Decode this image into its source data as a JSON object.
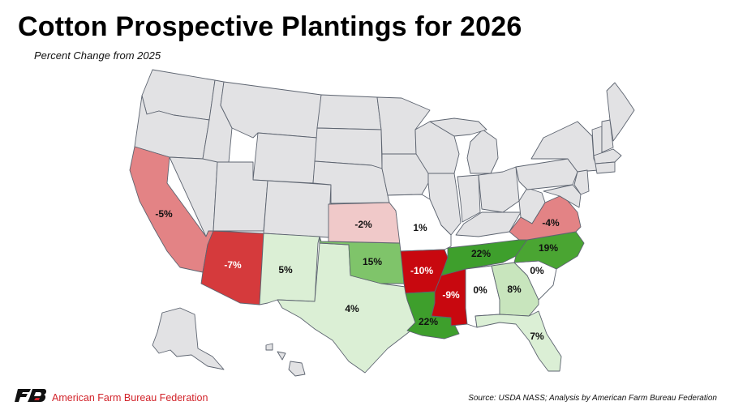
{
  "title": "Cotton Prospective Plantings for 2026",
  "subtitle": "Percent Change from 2025",
  "footer": {
    "organization": "American Farm Bureau Federation",
    "source": "Source: USDA NASS; Analysis by American Farm Bureau Federation"
  },
  "colors": {
    "no_data": "#e2e2e4",
    "border": "#5d6470",
    "dark_red": "#c8080f",
    "red": "#d53a3c",
    "pink": "#e38385",
    "light_pink": "#f0c9c9",
    "white": "#ffffff",
    "pale_green": "#dbefd5",
    "light_green": "#c8e5bd",
    "mid_green": "#7fc46a",
    "green": "#4aa532",
    "dark_green": "#3e9f2c",
    "brand_red": "#d2232a"
  },
  "states": [
    {
      "name": "California",
      "change": "-5%"
    },
    {
      "name": "Arizona",
      "change": "-7%"
    },
    {
      "name": "New Mexico",
      "change": "5%"
    },
    {
      "name": "Texas",
      "change": "4%"
    },
    {
      "name": "Oklahoma",
      "change": "15%"
    },
    {
      "name": "Kansas",
      "change": "-2%"
    },
    {
      "name": "Missouri",
      "change": "1%"
    },
    {
      "name": "Arkansas",
      "change": "-10%"
    },
    {
      "name": "Louisiana",
      "change": "22%"
    },
    {
      "name": "Mississippi",
      "change": "-9%"
    },
    {
      "name": "Alabama",
      "change": "0%"
    },
    {
      "name": "Tennessee",
      "change": "22%"
    },
    {
      "name": "Georgia",
      "change": "8%"
    },
    {
      "name": "Florida",
      "change": "7%"
    },
    {
      "name": "South Carolina",
      "change": "0%"
    },
    {
      "name": "North Carolina",
      "change": "19%"
    },
    {
      "name": "Virginia",
      "change": "-4%"
    }
  ]
}
